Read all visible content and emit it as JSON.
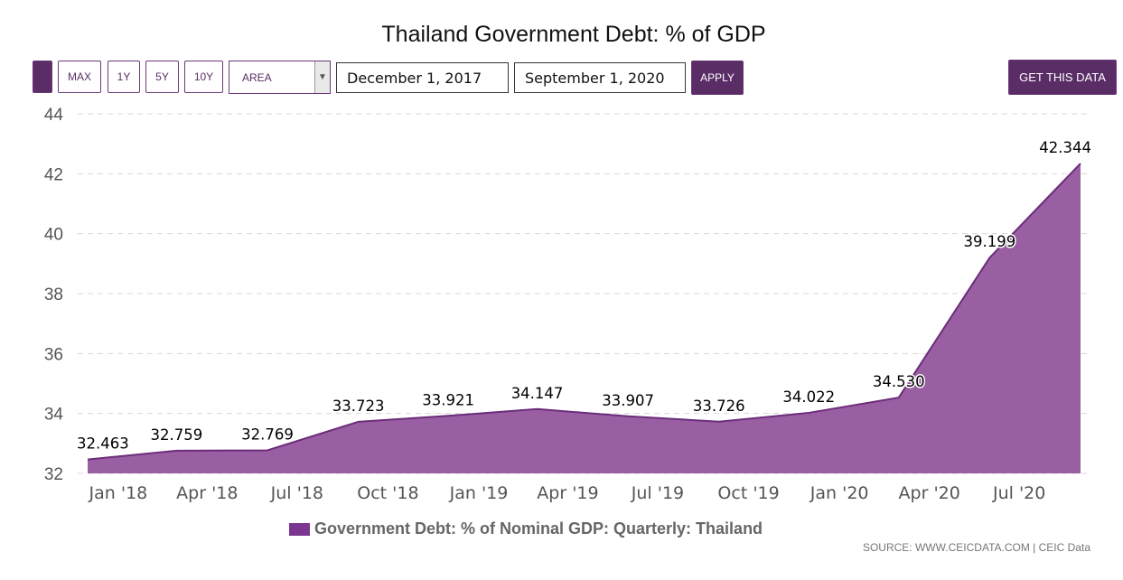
{
  "toolbar": {
    "max_label": "MAX",
    "y1_label": "1Y",
    "y5_label": "5Y",
    "y10_label": "10Y",
    "chart_type_value": "AREA",
    "start_date": "December 1, 2017",
    "end_date": "September 1, 2020",
    "apply_label": "APPLY",
    "get_data_label": "GET THIS DATA"
  },
  "colors": {
    "accent": "#5a2d66",
    "series_fill": "#9a5fa3",
    "series_line": "#6b2d7a",
    "legend_swatch": "#7b3690"
  },
  "source_text": "SOURCE: WWW.CEICDATA.COM | CEIC Data",
  "chart_data": {
    "type": "area",
    "title": "Thailand Government Debt: % of GDP",
    "xlabel": "",
    "ylabel": "",
    "x": [
      "2017-12",
      "2018-03",
      "2018-06",
      "2018-09",
      "2018-12",
      "2019-03",
      "2019-06",
      "2019-09",
      "2019-12",
      "2020-03",
      "2020-06",
      "2020-09"
    ],
    "x_tick_labels": [
      "Jan '18",
      "Apr '18",
      "Jul '18",
      "Oct '18",
      "Jan '19",
      "Apr '19",
      "Jul '19",
      "Oct '19",
      "Jan '20",
      "Apr '20",
      "Jul '20"
    ],
    "y_ticks": [
      32,
      34,
      36,
      38,
      40,
      42,
      44
    ],
    "ylim": [
      32,
      44
    ],
    "grid": true,
    "legend_position": "bottom",
    "series": [
      {
        "name": "Government Debt: % of Nominal GDP: Quarterly: Thailand",
        "values": [
          32.463,
          32.759,
          32.769,
          33.723,
          33.921,
          34.147,
          33.907,
          33.726,
          34.022,
          34.53,
          39.199,
          42.344
        ],
        "value_labels": [
          "32.463",
          "32.759",
          "32.769",
          "33.723",
          "33.921",
          "34.147",
          "33.907",
          "33.726",
          "34.022",
          "34.530",
          "39.199",
          "42.344"
        ]
      }
    ]
  }
}
